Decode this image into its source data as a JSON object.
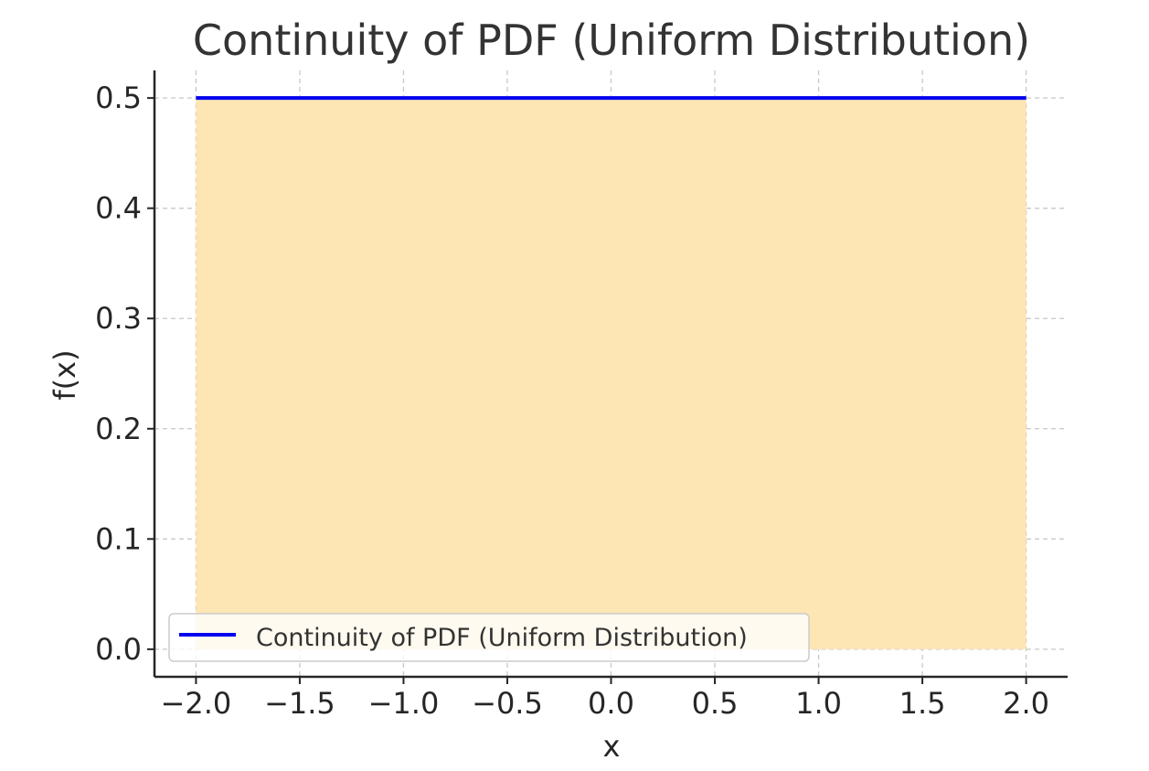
{
  "chart_data": {
    "type": "area",
    "title": "Continuity of PDF (Uniform Distribution)",
    "xlabel": "x",
    "ylabel": "f(x)",
    "xlim": [
      -2.2,
      2.2
    ],
    "ylim": [
      -0.025,
      0.525
    ],
    "x_ticks": [
      -2.0,
      -1.5,
      -1.0,
      -0.5,
      0.0,
      0.5,
      1.0,
      1.5,
      2.0
    ],
    "x_tick_labels": [
      "−2.0",
      "−1.5",
      "−1.0",
      "−0.5",
      "0.0",
      "0.5",
      "1.0",
      "1.5",
      "2.0"
    ],
    "y_ticks": [
      0.0,
      0.1,
      0.2,
      0.3,
      0.4,
      0.5
    ],
    "y_tick_labels": [
      "0.0",
      "0.1",
      "0.2",
      "0.3",
      "0.4",
      "0.5"
    ],
    "grid": true,
    "legend_placement": "lower-left",
    "series": [
      {
        "name": "Continuity of PDF (Uniform Distribution)",
        "x": [
          -2.0,
          2.0
        ],
        "y": [
          0.5,
          0.5
        ],
        "color": "#0000ee",
        "fill_color": "#fde5b4"
      }
    ]
  }
}
